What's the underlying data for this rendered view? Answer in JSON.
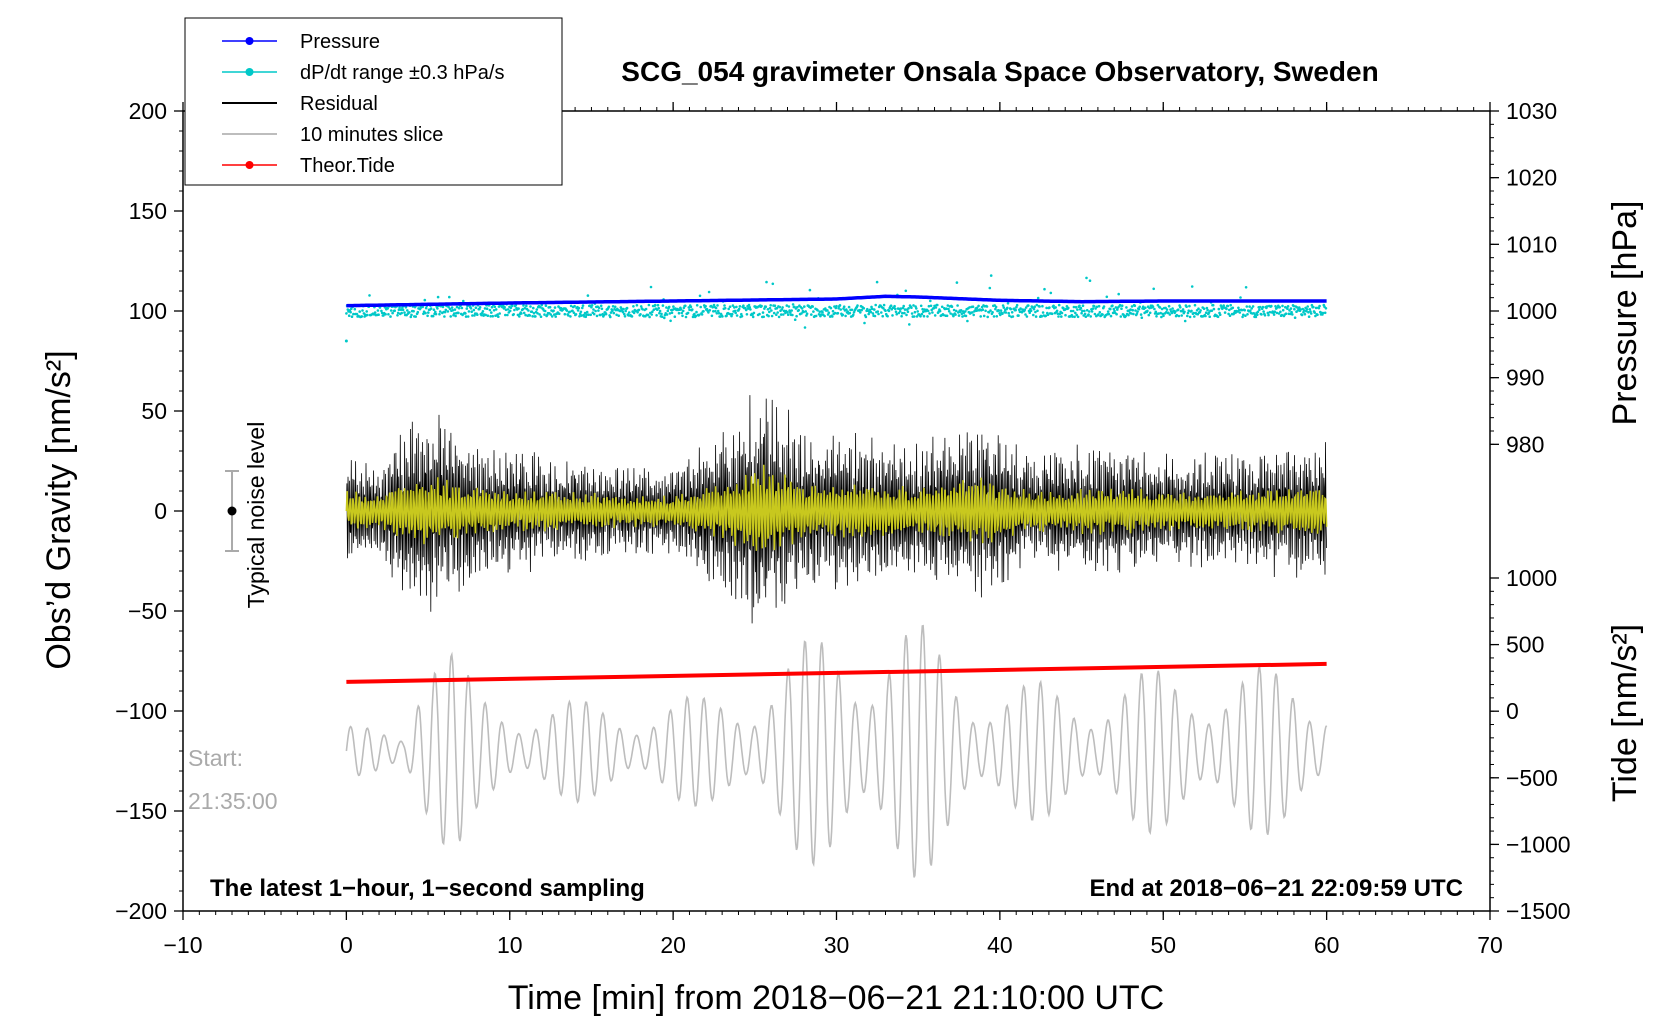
{
  "chart_data": {
    "type": "line",
    "title": "SCG_054 gravimeter Onsala Space Observatory, Sweden",
    "xlabel": "Time [min] from 2018−06−21 21:10:00 UTC",
    "ylabel_left": "Obs’d Gravity [nm/s²]",
    "ylabel_right_top": "Pressure [hPa]",
    "ylabel_right_bottom": "Tide [nm/s²]",
    "xlim": [
      -10,
      70
    ],
    "ylim_left": [
      -200,
      200
    ],
    "pressure_axis": [
      980,
      1030
    ],
    "tide_axis": [
      -1500,
      1000
    ],
    "x_ticks": [
      "−10",
      "0",
      "10",
      "20",
      "30",
      "40",
      "50",
      "60",
      "70"
    ],
    "y_ticks_left": [
      "200",
      "150",
      "100",
      "50",
      "0",
      "−50",
      "−100",
      "−150",
      "−200"
    ],
    "pressure_ticks": [
      "1030",
      "1020",
      "1010",
      "1000",
      "990",
      "980"
    ],
    "tide_ticks": [
      "1000",
      "500",
      "0",
      "−500",
      "−1000",
      "−1500"
    ],
    "legend": [
      {
        "label": "Pressure",
        "color": "#0000ff",
        "style": "line-dot"
      },
      {
        "label": "dP/dt range ±0.3 hPa/s",
        "color": "#00c8c8",
        "style": "line-dot"
      },
      {
        "label": "Residual",
        "color": "#000000",
        "style": "line"
      },
      {
        "label": "10 minutes slice",
        "color": "#bdbdbd",
        "style": "line"
      },
      {
        "label": "Theor.Tide",
        "color": "#ff0000",
        "style": "line-dot"
      }
    ],
    "annotations": {
      "bottom_left": "The latest 1−hour, 1−second sampling",
      "bottom_right": "End at 2018−06−21 22:09:59 UTC",
      "start_label": "Start:",
      "start_time": "21:35:00",
      "noise_label": "Typical noise level"
    },
    "series": [
      {
        "name": "Pressure",
        "units": "hPa",
        "x": [
          0,
          10,
          20,
          30,
          33,
          35,
          40,
          45,
          50,
          60
        ],
        "values": [
          1000.8,
          1001.2,
          1001.5,
          1001.8,
          1002.2,
          1002.1,
          1001.6,
          1001.4,
          1001.5,
          1001.5
        ]
      },
      {
        "name": "dP/dt",
        "units": "nm/s² (left axis)",
        "x": [
          0,
          60
        ],
        "values": [
          100,
          100
        ]
      },
      {
        "name": "Residual",
        "units": "nm/s²",
        "x": [
          0,
          60
        ],
        "values": [
          0,
          0
        ],
        "envelope_x": [
          0,
          2,
          4,
          5,
          8,
          12,
          16,
          20,
          23,
          25.7,
          28,
          31,
          35,
          39,
          42,
          46,
          50,
          55,
          60
        ],
        "envelope_amp": [
          30,
          25,
          50,
          55,
          35,
          30,
          25,
          22,
          45,
          70,
          40,
          40,
          35,
          50,
          30,
          35,
          30,
          30,
          40
        ]
      },
      {
        "name": "10 minutes slice",
        "units": "nm/s² (scaled)",
        "x": [
          0,
          60
        ],
        "values": [
          -130,
          -130
        ]
      },
      {
        "name": "Theor.Tide",
        "units": "nm/s²",
        "x": [
          0,
          60
        ],
        "values": [
          220,
          355
        ]
      }
    ],
    "noise_bar": {
      "x": -7,
      "center": 0,
      "low": -20,
      "high": 20
    }
  }
}
